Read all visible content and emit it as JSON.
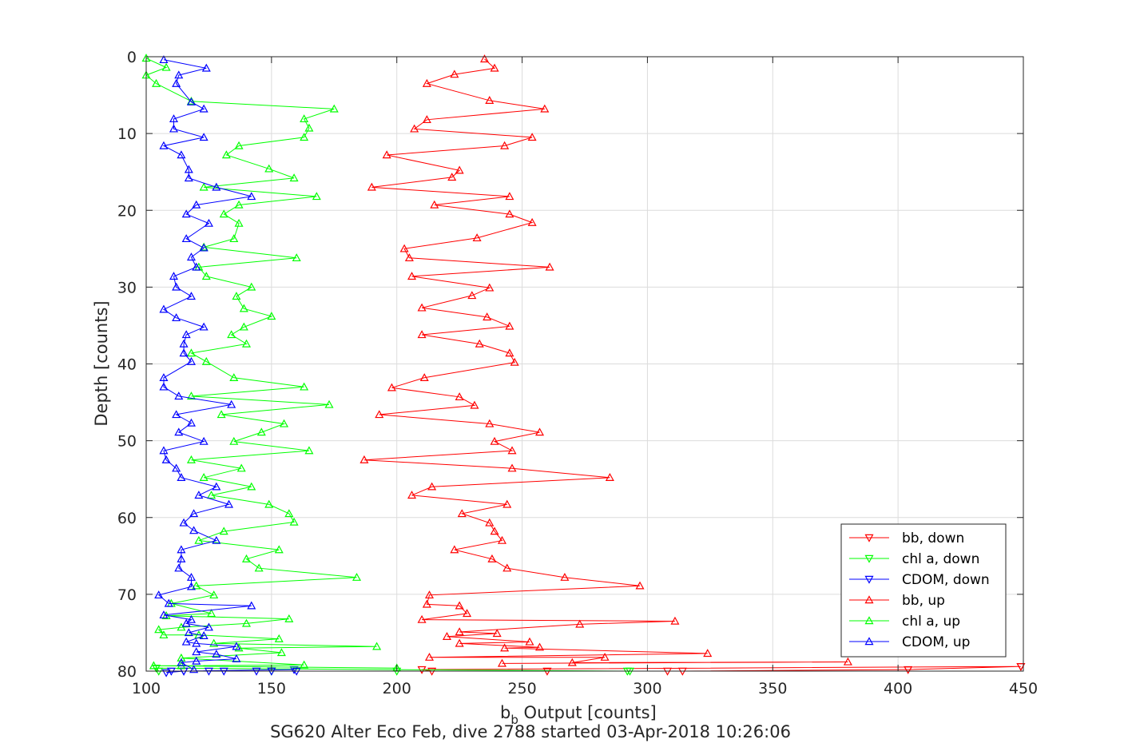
{
  "chart_data": {
    "type": "line",
    "xlabel_main": "b",
    "xlabel_sub": "b",
    "xlabel_rest": " Output [counts]",
    "ylabel": "Depth [counts]",
    "caption": "SG620 Alter Eco Feb, dive 2788 started 03-Apr-2018 10:26:06",
    "xlim": [
      100,
      450
    ],
    "ylim": [
      0,
      80
    ],
    "y_reversed": true,
    "grid": true,
    "xticks": [
      100,
      150,
      200,
      250,
      300,
      350,
      400,
      450
    ],
    "yticks": [
      0,
      10,
      20,
      30,
      40,
      50,
      60,
      70,
      80
    ],
    "legend_position": "bottom-right",
    "series": [
      {
        "name": "bb, down",
        "color": "#ff0000",
        "marker": "down",
        "points": [
          [
            449,
            79.4
          ],
          [
            404,
            79.8
          ],
          [
            314,
            80
          ],
          [
            308,
            80
          ],
          [
            260,
            80
          ],
          [
            214,
            80
          ],
          [
            210,
            79.8
          ],
          [
            449,
            79.4
          ]
        ]
      },
      {
        "name": "chl a, down",
        "color": "#00ff00",
        "marker": "down",
        "points": [
          [
            292,
            80
          ],
          [
            200,
            80
          ],
          [
            150,
            80
          ],
          [
            105,
            80
          ],
          [
            104,
            79.6
          ],
          [
            293,
            80
          ]
        ]
      },
      {
        "name": "CDOM, down",
        "color": "#0000ff",
        "marker": "down",
        "points": [
          [
            160,
            80
          ],
          [
            150,
            80
          ],
          [
            144,
            80
          ],
          [
            131,
            80
          ],
          [
            125,
            80
          ],
          [
            115,
            80
          ],
          [
            110,
            80
          ],
          [
            108,
            80.2
          ],
          [
            115,
            80
          ],
          [
            159,
            79.8
          ]
        ]
      },
      {
        "name": "bb, up",
        "color": "#ff0000",
        "marker": "up",
        "points": [
          [
            235,
            0.3
          ],
          [
            239,
            1.5
          ],
          [
            223,
            2.3
          ],
          [
            212,
            3.5
          ],
          [
            237,
            5.7
          ],
          [
            259,
            6.8
          ],
          [
            212,
            8.2
          ],
          [
            207,
            9.4
          ],
          [
            254,
            10.5
          ],
          [
            243,
            11.6
          ],
          [
            196,
            12.8
          ],
          [
            225,
            14.8
          ],
          [
            222,
            15.7
          ],
          [
            190,
            17
          ],
          [
            245,
            18.2
          ],
          [
            215,
            19.3
          ],
          [
            245,
            20.5
          ],
          [
            254,
            21.6
          ],
          [
            232,
            23.6
          ],
          [
            203,
            25
          ],
          [
            205,
            26.2
          ],
          [
            261,
            27.4
          ],
          [
            206,
            28.6
          ],
          [
            237,
            30.1
          ],
          [
            230,
            31.1
          ],
          [
            210,
            32.7
          ],
          [
            236,
            33.9
          ],
          [
            245,
            35.1
          ],
          [
            210,
            36.2
          ],
          [
            233,
            37.4
          ],
          [
            245,
            38.6
          ],
          [
            247,
            39.8
          ],
          [
            211,
            41.8
          ],
          [
            198,
            43.1
          ],
          [
            225,
            44.3
          ],
          [
            231,
            45.4
          ],
          [
            193,
            46.6
          ],
          [
            237,
            47.8
          ],
          [
            257,
            48.9
          ],
          [
            239,
            50.1
          ],
          [
            246,
            51.3
          ],
          [
            187,
            52.5
          ],
          [
            246,
            53.6
          ],
          [
            285,
            54.8
          ],
          [
            214,
            56
          ],
          [
            206,
            57.1
          ],
          [
            244,
            58.3
          ],
          [
            226,
            59.5
          ],
          [
            237,
            60.7
          ],
          [
            239,
            61.8
          ],
          [
            242,
            63
          ],
          [
            223,
            64.2
          ],
          [
            238,
            65.4
          ],
          [
            244,
            66.6
          ],
          [
            267,
            67.8
          ],
          [
            297,
            68.9
          ],
          [
            213,
            70.1
          ],
          [
            212,
            71.3
          ],
          [
            225,
            71.5
          ],
          [
            228,
            72.5
          ],
          [
            210,
            73.3
          ],
          [
            311,
            73.5
          ],
          [
            273,
            73.9
          ],
          [
            225,
            74.9
          ],
          [
            240,
            75.1
          ],
          [
            220,
            75.5
          ],
          [
            253,
            76.2
          ],
          [
            225,
            76.4
          ],
          [
            257,
            76.9
          ],
          [
            243,
            77
          ],
          [
            324,
            77.7
          ],
          [
            213,
            78.2
          ],
          [
            283,
            78.2
          ],
          [
            270,
            78.9
          ],
          [
            380,
            78.8
          ],
          [
            242,
            79
          ]
        ]
      },
      {
        "name": "chl a, up",
        "color": "#00ff00",
        "marker": "up",
        "points": [
          [
            100,
            0.2
          ],
          [
            108,
            1.4
          ],
          [
            100,
            2.4
          ],
          [
            104,
            3.5
          ],
          [
            118,
            5.8
          ],
          [
            175,
            6.8
          ],
          [
            163,
            8.1
          ],
          [
            165,
            9.3
          ],
          [
            163,
            10.5
          ],
          [
            137,
            11.6
          ],
          [
            132,
            12.8
          ],
          [
            149,
            14.6
          ],
          [
            159,
            15.8
          ],
          [
            123,
            17
          ],
          [
            168,
            18.2
          ],
          [
            137,
            19.3
          ],
          [
            131,
            20.5
          ],
          [
            137,
            21.7
          ],
          [
            135,
            23.7
          ],
          [
            123,
            24.8
          ],
          [
            160,
            26.2
          ],
          [
            121,
            27.4
          ],
          [
            124,
            28.6
          ],
          [
            142,
            30
          ],
          [
            136,
            31.2
          ],
          [
            139,
            32.8
          ],
          [
            150,
            33.8
          ],
          [
            139,
            35.2
          ],
          [
            134,
            36.2
          ],
          [
            140,
            37.4
          ],
          [
            118,
            38.6
          ],
          [
            124,
            39.7
          ],
          [
            135,
            41.8
          ],
          [
            163,
            43
          ],
          [
            118,
            44.2
          ],
          [
            173,
            45.3
          ],
          [
            130,
            46.6
          ],
          [
            155,
            47.8
          ],
          [
            146,
            48.9
          ],
          [
            135,
            50.1
          ],
          [
            165,
            51.3
          ],
          [
            118,
            52.5
          ],
          [
            138,
            53.6
          ],
          [
            123,
            54.8
          ],
          [
            142,
            56
          ],
          [
            126,
            57.1
          ],
          [
            149,
            58.3
          ],
          [
            157,
            59.5
          ],
          [
            159,
            60.6
          ],
          [
            131,
            61.8
          ],
          [
            121,
            63
          ],
          [
            153,
            64.2
          ],
          [
            140,
            65.4
          ],
          [
            145,
            66.6
          ],
          [
            184,
            67.8
          ],
          [
            120,
            68.9
          ],
          [
            127,
            70.1
          ],
          [
            110,
            71.2
          ],
          [
            126,
            72.5
          ],
          [
            108,
            72.8
          ],
          [
            157,
            73.2
          ],
          [
            140,
            73.8
          ],
          [
            114,
            74.3
          ],
          [
            105,
            74.6
          ],
          [
            107,
            75.3
          ],
          [
            121,
            75.3
          ],
          [
            153,
            75.8
          ],
          [
            127,
            76.4
          ],
          [
            192,
            76.8
          ],
          [
            137,
            77
          ],
          [
            154,
            77.6
          ],
          [
            114,
            78.3
          ],
          [
            163,
            79.2
          ],
          [
            114,
            79.3
          ],
          [
            103,
            79.3
          ],
          [
            200,
            79.6
          ]
        ]
      },
      {
        "name": "CDOM, up",
        "color": "#0000ff",
        "marker": "up",
        "points": [
          [
            107,
            0.4
          ],
          [
            124,
            1.5
          ],
          [
            113,
            2.4
          ],
          [
            112,
            3.5
          ],
          [
            118,
            5.9
          ],
          [
            123,
            6.8
          ],
          [
            111,
            8.1
          ],
          [
            111,
            9.4
          ],
          [
            123,
            10.5
          ],
          [
            107,
            11.6
          ],
          [
            114,
            12.8
          ],
          [
            117,
            14.7
          ],
          [
            117,
            15.8
          ],
          [
            128,
            17
          ],
          [
            142,
            18.2
          ],
          [
            120,
            19.3
          ],
          [
            116,
            20.5
          ],
          [
            125,
            21.7
          ],
          [
            116,
            23.7
          ],
          [
            123,
            24.9
          ],
          [
            118,
            26.1
          ],
          [
            120,
            27.4
          ],
          [
            111,
            28.6
          ],
          [
            112,
            30
          ],
          [
            118,
            31.2
          ],
          [
            107,
            32.9
          ],
          [
            112,
            34
          ],
          [
            123,
            35.2
          ],
          [
            116,
            36.2
          ],
          [
            115,
            37.4
          ],
          [
            115,
            38.6
          ],
          [
            118,
            39.7
          ],
          [
            107,
            41.8
          ],
          [
            107,
            43
          ],
          [
            113,
            44.2
          ],
          [
            134,
            45.3
          ],
          [
            112,
            46.6
          ],
          [
            118,
            47.7
          ],
          [
            113,
            48.9
          ],
          [
            123,
            50.1
          ],
          [
            107,
            51.3
          ],
          [
            108,
            52.5
          ],
          [
            112,
            53.6
          ],
          [
            114,
            54.8
          ],
          [
            128,
            56
          ],
          [
            121,
            57.1
          ],
          [
            133,
            58.3
          ],
          [
            119,
            59.5
          ],
          [
            115,
            60.7
          ],
          [
            119,
            61.7
          ],
          [
            128,
            63
          ],
          [
            114,
            64.2
          ],
          [
            114,
            65.4
          ],
          [
            113,
            66.6
          ],
          [
            118,
            67.8
          ],
          [
            118,
            69
          ],
          [
            105,
            70.1
          ],
          [
            109,
            71.2
          ],
          [
            142,
            71.5
          ],
          [
            107,
            72.7
          ],
          [
            118,
            73.3
          ],
          [
            116,
            73.8
          ],
          [
            125,
            74.3
          ],
          [
            117,
            75
          ],
          [
            123,
            75.4
          ],
          [
            116,
            76.2
          ],
          [
            120,
            76.4
          ],
          [
            136,
            76.8
          ],
          [
            120,
            77.5
          ],
          [
            128,
            77.8
          ],
          [
            136,
            78.4
          ],
          [
            120,
            78.7
          ],
          [
            114,
            78.9
          ],
          [
            119,
            79.8
          ]
        ]
      }
    ]
  }
}
